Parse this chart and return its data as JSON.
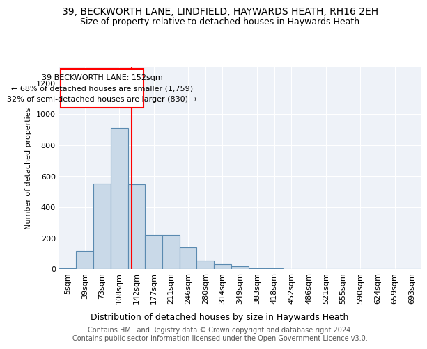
{
  "title": "39, BECKWORTH LANE, LINDFIELD, HAYWARDS HEATH, RH16 2EH",
  "subtitle": "Size of property relative to detached houses in Haywards Heath",
  "xlabel": "Distribution of detached houses by size in Haywards Heath",
  "ylabel": "Number of detached properties",
  "bar_color": "#c9d9e8",
  "bar_edge_color": "#5a8ab0",
  "categories": [
    "5sqm",
    "39sqm",
    "73sqm",
    "108sqm",
    "142sqm",
    "177sqm",
    "211sqm",
    "246sqm",
    "280sqm",
    "314sqm",
    "349sqm",
    "383sqm",
    "418sqm",
    "452sqm",
    "486sqm",
    "521sqm",
    "555sqm",
    "590sqm",
    "624sqm",
    "659sqm",
    "693sqm"
  ],
  "values": [
    5,
    115,
    550,
    910,
    545,
    220,
    220,
    140,
    55,
    30,
    20,
    5,
    5,
    2,
    2,
    2,
    2,
    2,
    2,
    2,
    2
  ],
  "ylim": [
    0,
    1300
  ],
  "yticks": [
    0,
    200,
    400,
    600,
    800,
    1000,
    1200
  ],
  "red_line_x": 3.72,
  "annotation_text": "39 BECKWORTH LANE: 152sqm\n← 68% of detached houses are smaller (1,759)\n32% of semi-detached houses are larger (830) →",
  "footer_line1": "Contains HM Land Registry data © Crown copyright and database right 2024.",
  "footer_line2": "Contains public sector information licensed under the Open Government Licence v3.0.",
  "background_color": "#eef2f8",
  "grid_color": "#ffffff",
  "fig_bg_color": "#ffffff"
}
